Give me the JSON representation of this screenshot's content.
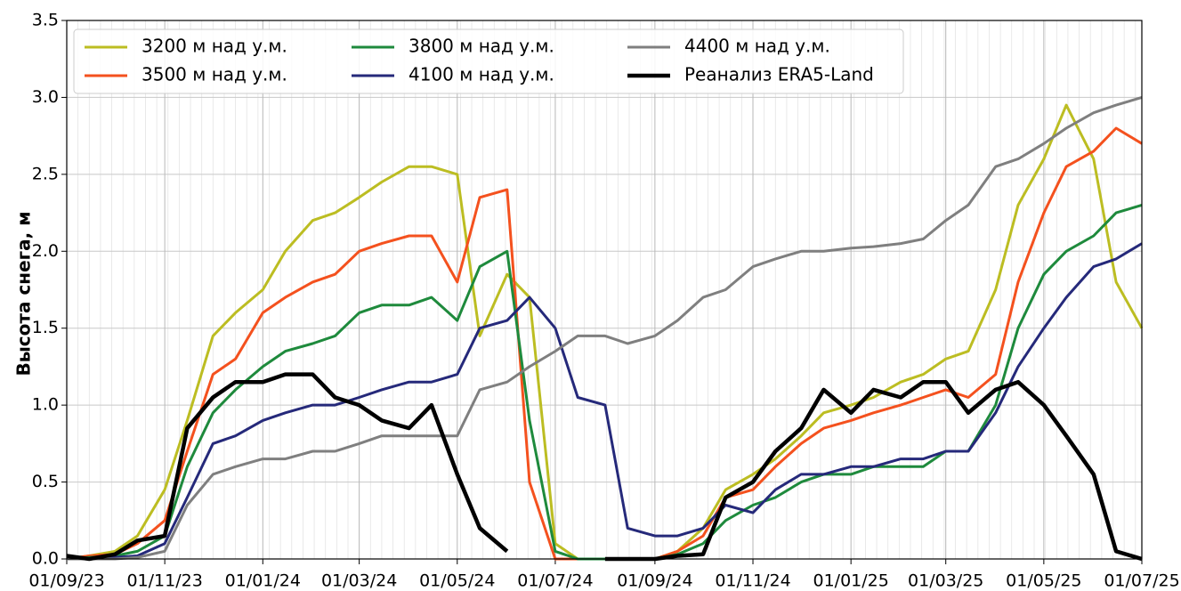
{
  "chart_data": {
    "type": "line",
    "y_label": "Высота снега, м",
    "x": [
      "01/09/23",
      "15/09/23",
      "01/10/23",
      "15/10/23",
      "01/11/23",
      "15/11/23",
      "01/12/23",
      "15/12/23",
      "01/01/24",
      "15/01/24",
      "01/02/24",
      "15/02/24",
      "01/03/24",
      "15/03/24",
      "01/04/24",
      "15/04/24",
      "01/05/24",
      "15/05/24",
      "01/06/24",
      "15/06/24",
      "01/07/24",
      "15/07/24",
      "01/08/24",
      "15/08/24",
      "01/09/24",
      "15/09/24",
      "01/10/24",
      "15/10/24",
      "01/11/24",
      "15/11/24",
      "01/12/24",
      "15/12/24",
      "01/01/25",
      "15/01/25",
      "01/02/25",
      "15/02/25",
      "01/03/25",
      "15/03/25",
      "01/04/25",
      "15/04/25",
      "01/05/25",
      "15/05/25",
      "01/06/25",
      "15/06/25",
      "01/07/25"
    ],
    "series": [
      {
        "name": "3200 м над у.м.",
        "color": "#bcbd22",
        "width": 3,
        "values": [
          0.0,
          0.02,
          0.05,
          0.15,
          0.45,
          0.9,
          1.45,
          1.6,
          1.75,
          2.0,
          2.2,
          2.25,
          2.35,
          2.45,
          2.55,
          2.55,
          2.5,
          1.45,
          1.85,
          1.7,
          0.1,
          0.0,
          0,
          0,
          0,
          0.05,
          0.2,
          0.45,
          0.55,
          0.65,
          0.8,
          0.95,
          1.0,
          1.05,
          1.15,
          1.2,
          1.3,
          1.35,
          1.75,
          2.3,
          2.6,
          2.95,
          2.6,
          1.8,
          1.5
        ]
      },
      {
        "name": "3500 м над у.м.",
        "color": "#f4511e",
        "width": 3,
        "values": [
          0,
          0.02,
          0.03,
          0.1,
          0.25,
          0.7,
          1.2,
          1.3,
          1.6,
          1.7,
          1.8,
          1.85,
          2.0,
          2.05,
          2.1,
          2.1,
          1.8,
          2.35,
          2.4,
          0.5,
          0,
          0,
          0,
          0,
          0,
          0.05,
          0.15,
          0.4,
          0.45,
          0.6,
          0.75,
          0.85,
          0.9,
          0.95,
          1.0,
          1.05,
          1.1,
          1.05,
          1.2,
          1.8,
          2.25,
          2.55,
          2.65,
          2.8,
          2.7
        ]
      },
      {
        "name": "3800 м над у.м.",
        "color": "#1e8a3c",
        "width": 3,
        "values": [
          0,
          0.01,
          0.02,
          0.05,
          0.15,
          0.6,
          0.95,
          1.1,
          1.25,
          1.35,
          1.4,
          1.45,
          1.6,
          1.65,
          1.65,
          1.7,
          1.55,
          1.9,
          2.0,
          0.9,
          0.05,
          0,
          0,
          0,
          0,
          0.03,
          0.1,
          0.25,
          0.35,
          0.4,
          0.5,
          0.55,
          0.55,
          0.6,
          0.6,
          0.6,
          0.7,
          0.7,
          1.0,
          1.5,
          1.85,
          2.0,
          2.1,
          2.25,
          2.3
        ]
      },
      {
        "name": "4100 м над у.м.",
        "color": "#25297a",
        "width": 3,
        "values": [
          0,
          0,
          0.01,
          0.02,
          0.1,
          0.4,
          0.75,
          0.8,
          0.9,
          0.95,
          1.0,
          1.0,
          1.05,
          1.1,
          1.15,
          1.15,
          1.2,
          1.5,
          1.55,
          1.7,
          1.5,
          1.05,
          1.0,
          0.2,
          0.15,
          0.15,
          0.2,
          0.35,
          0.3,
          0.45,
          0.55,
          0.55,
          0.6,
          0.6,
          0.65,
          0.65,
          0.7,
          0.7,
          0.95,
          1.25,
          1.5,
          1.7,
          1.9,
          1.95,
          2.05
        ]
      },
      {
        "name": "4400 м над у.м.",
        "color": "#7f7f7f",
        "width": 3,
        "values": [
          0,
          0,
          0,
          0.01,
          0.05,
          0.35,
          0.55,
          0.6,
          0.65,
          0.65,
          0.7,
          0.7,
          0.75,
          0.8,
          0.8,
          0.8,
          0.8,
          1.1,
          1.15,
          1.25,
          1.35,
          1.45,
          1.45,
          1.4,
          1.45,
          1.55,
          1.7,
          1.75,
          1.9,
          1.95,
          2.0,
          2.0,
          2.02,
          2.03,
          2.05,
          2.08,
          2.2,
          2.3,
          2.55,
          2.6,
          2.7,
          2.8,
          2.9,
          2.95,
          3.0
        ]
      },
      {
        "name": "Реанализ ERA5-Land",
        "color": "#000000",
        "width": 4.5,
        "values": [
          0.02,
          0,
          0.03,
          0.12,
          0.15,
          0.85,
          1.05,
          1.15,
          1.15,
          1.2,
          1.2,
          1.05,
          1.0,
          0.9,
          0.85,
          1.0,
          0.55,
          0.2,
          0.05,
          null,
          0.0,
          null,
          0.0,
          0.0,
          0.0,
          0.02,
          0.03,
          0.4,
          0.5,
          0.7,
          0.85,
          1.1,
          0.95,
          1.1,
          1.05,
          1.15,
          1.15,
          0.95,
          1.1,
          1.15,
          1.0,
          0.8,
          0.55,
          0.05,
          0.0
        ]
      }
    ],
    "xlim": [
      "01/09/23",
      "01/07/25"
    ],
    "xticks": [
      "01/09/23",
      "01/11/23",
      "01/01/24",
      "01/03/24",
      "01/05/24",
      "01/07/24",
      "01/09/24",
      "01/11/24",
      "01/01/25",
      "01/03/25",
      "01/05/25",
      "01/07/25"
    ],
    "ylim": [
      0,
      3.5
    ],
    "yticks": [
      {
        "value": 0,
        "label": "0.0"
      },
      {
        "value": 0.5,
        "label": "0.5"
      },
      {
        "value": 1,
        "label": "1.0"
      },
      {
        "value": 1.5,
        "label": "1.5"
      },
      {
        "value": 2,
        "label": "2.0"
      },
      {
        "value": 2.5,
        "label": "2.5"
      },
      {
        "value": 3,
        "label": "3.0"
      },
      {
        "value": 3.5,
        "label": "3.5"
      }
    ],
    "grid": true,
    "legend": "upper left"
  }
}
